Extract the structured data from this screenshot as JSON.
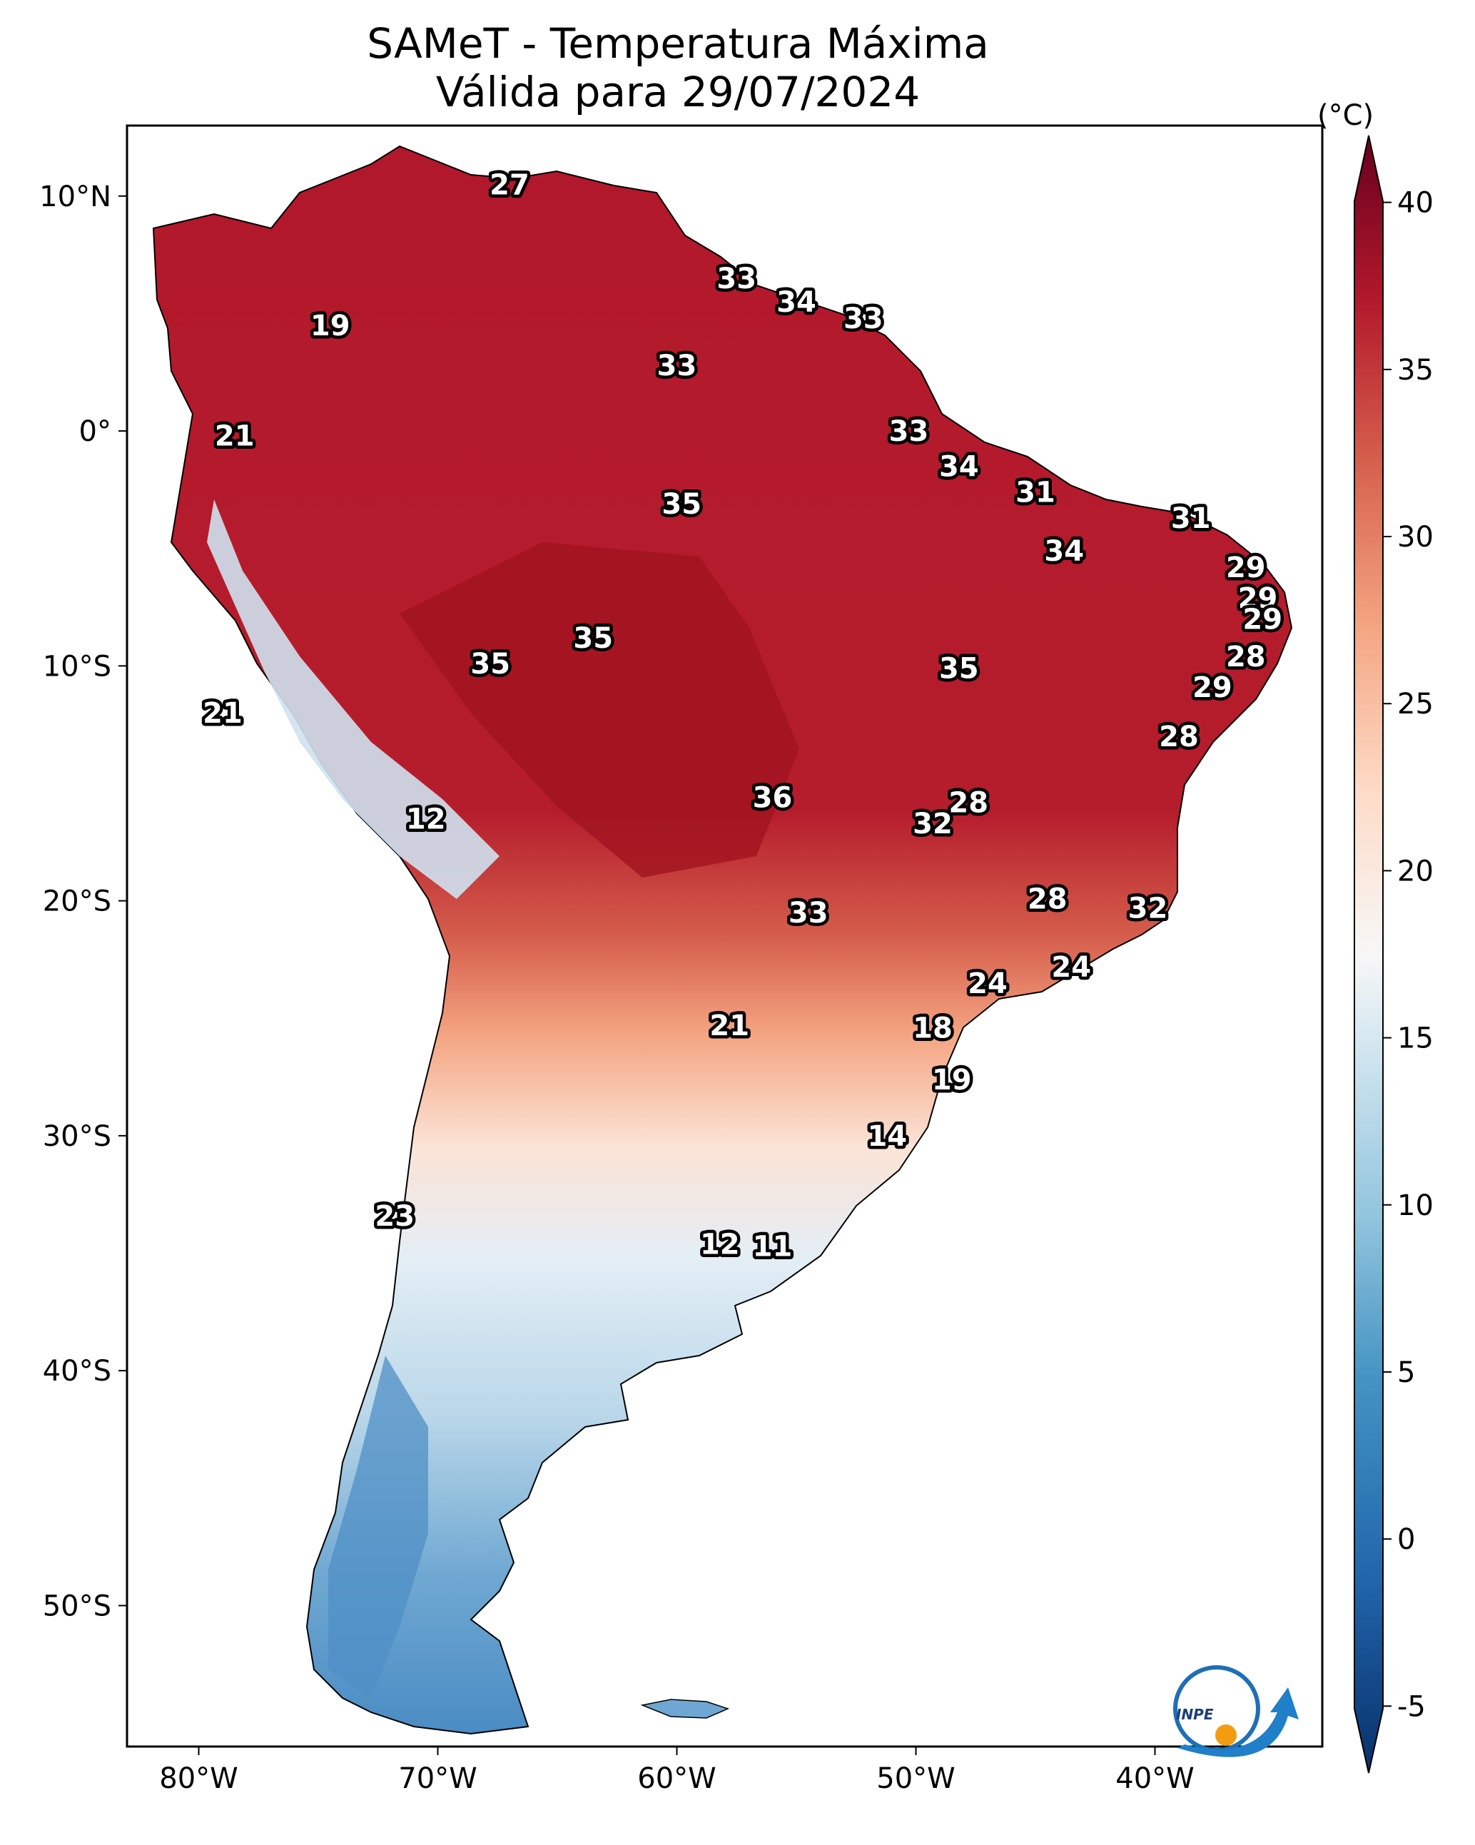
{
  "title": {
    "line1": "SAMeT - Temperatura Máxima",
    "line2": "Válida para 29/07/2024"
  },
  "map": {
    "lon_ticks": [
      "80°W",
      "70°W",
      "60°W",
      "50°W",
      "40°W"
    ],
    "lat_ticks": [
      "10°N",
      "0°",
      "10°S",
      "20°S",
      "30°S",
      "40°S",
      "50°S"
    ],
    "extent": {
      "lon_min": -83,
      "lon_max": -33,
      "lat_min": -56,
      "lat_max": 13
    },
    "point_labels": [
      {
        "lon": -67,
        "lat": 10.5,
        "value": "27"
      },
      {
        "lon": -74.5,
        "lat": 4.5,
        "value": "19"
      },
      {
        "lon": -78.5,
        "lat": -0.2,
        "value": "21"
      },
      {
        "lon": -79,
        "lat": -12,
        "value": "21"
      },
      {
        "lon": -57.5,
        "lat": 6.5,
        "value": "33"
      },
      {
        "lon": -55,
        "lat": 5.5,
        "value": "34"
      },
      {
        "lon": -52.2,
        "lat": 4.8,
        "value": "33"
      },
      {
        "lon": -60,
        "lat": 2.8,
        "value": "33"
      },
      {
        "lon": -50.3,
        "lat": 0,
        "value": "33"
      },
      {
        "lon": -48.2,
        "lat": -1.5,
        "value": "34"
      },
      {
        "lon": -45,
        "lat": -2.6,
        "value": "31"
      },
      {
        "lon": -38.5,
        "lat": -3.7,
        "value": "31"
      },
      {
        "lon": -43.8,
        "lat": -5.1,
        "value": "34"
      },
      {
        "lon": -59.8,
        "lat": -3.1,
        "value": "35"
      },
      {
        "lon": -36.2,
        "lat": -5.8,
        "value": "29"
      },
      {
        "lon": -35.7,
        "lat": -7.1,
        "value": "29"
      },
      {
        "lon": -35.5,
        "lat": -8,
        "value": "29"
      },
      {
        "lon": -36.2,
        "lat": -9.6,
        "value": "28"
      },
      {
        "lon": -37.6,
        "lat": -10.9,
        "value": "29"
      },
      {
        "lon": -39,
        "lat": -13,
        "value": "28"
      },
      {
        "lon": -63.5,
        "lat": -8.8,
        "value": "35"
      },
      {
        "lon": -67.8,
        "lat": -9.9,
        "value": "35"
      },
      {
        "lon": -48.2,
        "lat": -10.1,
        "value": "35"
      },
      {
        "lon": -56,
        "lat": -15.6,
        "value": "36"
      },
      {
        "lon": -47.8,
        "lat": -15.8,
        "value": "28"
      },
      {
        "lon": -49.3,
        "lat": -16.7,
        "value": "32"
      },
      {
        "lon": -70.5,
        "lat": -16.5,
        "value": "12"
      },
      {
        "lon": -44.5,
        "lat": -19.9,
        "value": "28"
      },
      {
        "lon": -40.3,
        "lat": -20.3,
        "value": "32"
      },
      {
        "lon": -54.5,
        "lat": -20.5,
        "value": "33"
      },
      {
        "lon": -43.5,
        "lat": -22.8,
        "value": "24"
      },
      {
        "lon": -47,
        "lat": -23.5,
        "value": "24"
      },
      {
        "lon": -57.8,
        "lat": -25.3,
        "value": "21"
      },
      {
        "lon": -49.3,
        "lat": -25.4,
        "value": "18"
      },
      {
        "lon": -48.5,
        "lat": -27.6,
        "value": "19"
      },
      {
        "lon": -51.2,
        "lat": -30,
        "value": "14"
      },
      {
        "lon": -71.8,
        "lat": -33.4,
        "value": "23"
      },
      {
        "lon": -58.2,
        "lat": -34.6,
        "value": "12"
      },
      {
        "lon": -56,
        "lat": -34.7,
        "value": "11"
      }
    ]
  },
  "colorbar": {
    "unit": "(°C)",
    "min": -7,
    "max": 42,
    "tick_values": [
      40,
      35,
      30,
      25,
      20,
      15,
      10,
      5,
      0,
      -5
    ],
    "tick_labels": [
      "40",
      "35",
      "30",
      "25",
      "20",
      "15",
      "10",
      "5",
      "0",
      "-5"
    ],
    "colors": [
      "#08306b",
      "#2166ac",
      "#4393c3",
      "#92c5de",
      "#d1e5f0",
      "#f7f7f7",
      "#fddbc7",
      "#f4a582",
      "#d6604d",
      "#b2182b",
      "#67001f"
    ]
  },
  "logo": {
    "text": "INPE"
  }
}
